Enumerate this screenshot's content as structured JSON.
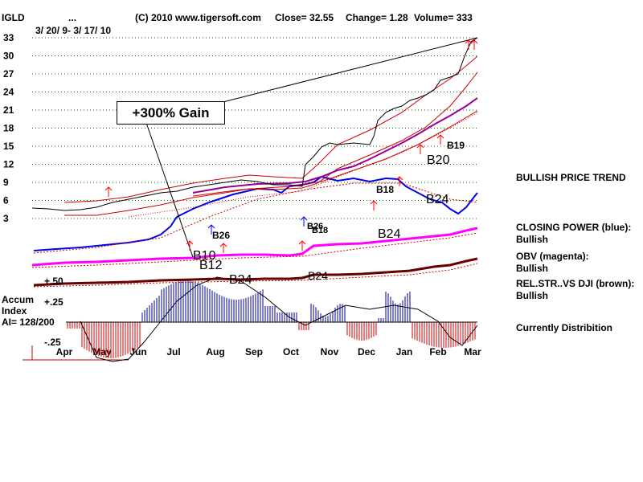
{
  "header": {
    "ticker": "IGLD",
    "ellipsis": "...",
    "date_range": "3/ 20/ 9- 3/ 17/ 10",
    "copyright": "(C) 2010 www.tigersoft.com",
    "close": "Close= 32.55",
    "change": "Change= 1.28",
    "volume": "Volume= 333"
  },
  "callout": {
    "text": "+300% Gain"
  },
  "side_panel": {
    "trend": "BULLISH PRICE TREND",
    "closing_power_label": "CLOSING POWER (blue):",
    "closing_power_value": "Bullish",
    "obv_label": "OBV (magenta):",
    "obv_value": "Bullish",
    "relstr_label": "REL.STR..VS DJI (brown):",
    "relstr_value": "Bullish",
    "status": "Currently Distribition"
  },
  "accum": {
    "label1": "Accum",
    "label2": "Index",
    "ai": "AI= 128/200",
    "tick_pos50": "+.50",
    "tick_pos25": "+.25",
    "tick_neg25": "-.25"
  },
  "colors": {
    "price": "#000000",
    "band": "#cc0000",
    "closing_power": "#0000ee",
    "obv": "#ff00ff",
    "ma_purple": "#990099",
    "relstr": "#660000",
    "accum_pos": "#000099",
    "accum_neg": "#cc0000",
    "signal": "#ff0000",
    "grid": "#007700"
  },
  "chart_data": {
    "type": "line",
    "ylim": [
      3,
      33
    ],
    "y_ticks": [
      33,
      30,
      27,
      24,
      21,
      18,
      15,
      12,
      9,
      6,
      3
    ],
    "x_ticks": [
      "Apr",
      "May",
      "Jun",
      "Jul",
      "Aug",
      "Sep",
      "Oct",
      "Nov",
      "Dec",
      "Jan",
      "Feb",
      "Mar"
    ],
    "price": [
      [
        "Apr",
        5.4
      ],
      [
        "May",
        5.0
      ],
      [
        "Jun",
        5.8
      ],
      [
        "Jul",
        6.8
      ],
      [
        "Aug",
        7.9
      ],
      [
        "Sep",
        8.8
      ],
      [
        "Oct",
        8.4
      ],
      [
        "Oct-Nov",
        12.0
      ],
      [
        "Nov",
        15.2
      ],
      [
        "Dec",
        15.5
      ],
      [
        "Dec-Jan",
        20.5
      ],
      [
        "Jan",
        23.0
      ],
      [
        "Feb",
        26.0
      ],
      [
        "Mar",
        32.6
      ]
    ],
    "signals": [
      {
        "label": "B10",
        "month": "Jul"
      },
      {
        "label": "B12",
        "month": "Jul-Aug"
      },
      {
        "label": "B24",
        "month": "Aug"
      },
      {
        "label": "B26",
        "month": "Jul"
      },
      {
        "label": "B26",
        "month": "Oct"
      },
      {
        "label": "B18",
        "month": "Oct"
      },
      {
        "label": "B24",
        "month": "Oct"
      },
      {
        "label": "B18",
        "month": "Dec"
      },
      {
        "label": "B24",
        "month": "Dec-Jan"
      },
      {
        "label": "B20",
        "month": "Jan-Feb"
      },
      {
        "label": "B19",
        "month": "Feb"
      },
      {
        "label": "B24",
        "month": "Feb"
      }
    ]
  }
}
